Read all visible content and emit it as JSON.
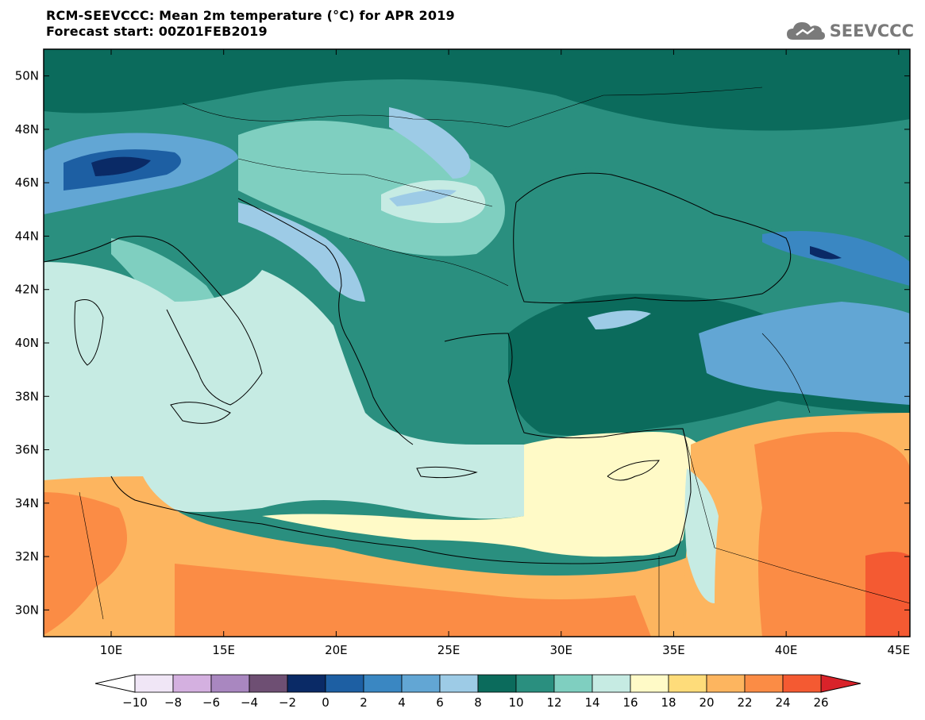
{
  "title": {
    "line1": "RCM-SEEVCCC: Mean 2m temperature (°C) for APR 2019",
    "line2": "Forecast start: 00Z01FEB2019"
  },
  "logo": {
    "text": "SEEVCCC",
    "icon": "cloud-icon"
  },
  "axes": {
    "lat_labels": [
      "50N",
      "48N",
      "46N",
      "44N",
      "42N",
      "40N",
      "38N",
      "36N",
      "34N",
      "32N",
      "30N"
    ],
    "lat_values": [
      50,
      48,
      46,
      44,
      42,
      40,
      38,
      36,
      34,
      32,
      30
    ],
    "lon_labels": [
      "10E",
      "15E",
      "20E",
      "25E",
      "30E",
      "35E",
      "40E",
      "45E"
    ],
    "lon_values": [
      10,
      15,
      20,
      25,
      30,
      35,
      40,
      45
    ],
    "lon_range": [
      7,
      45.5
    ],
    "lat_range": [
      29,
      51
    ]
  },
  "colorbar": {
    "labels": [
      "-10",
      "-8",
      "-6",
      "-4",
      "-2",
      "0",
      "2",
      "4",
      "6",
      "8",
      "10",
      "12",
      "14",
      "16",
      "18",
      "20",
      "22",
      "24",
      "26"
    ],
    "colors": [
      "#f0e6f6",
      "#d4b0e0",
      "#a987c0",
      "#6e4f73",
      "#0a2a66",
      "#1d5fa3",
      "#3a87c2",
      "#62a6d4",
      "#9dcbe6",
      "#0b6b5c",
      "#2a8f7f",
      "#7fcfc0",
      "#c6ebe3",
      "#fffac7",
      "#fedc7a",
      "#fdb55f",
      "#fb8c45",
      "#f45a32"
    ],
    "under_color": "#ffffff",
    "over_color": "#d9232a"
  },
  "colors": {
    "sea_mediterranean": "#c6ebe3",
    "sea_black": "#2a8f7f",
    "land_north": "#2a8f7f",
    "land_south": "#fdb55f",
    "coastline": "#000000"
  }
}
